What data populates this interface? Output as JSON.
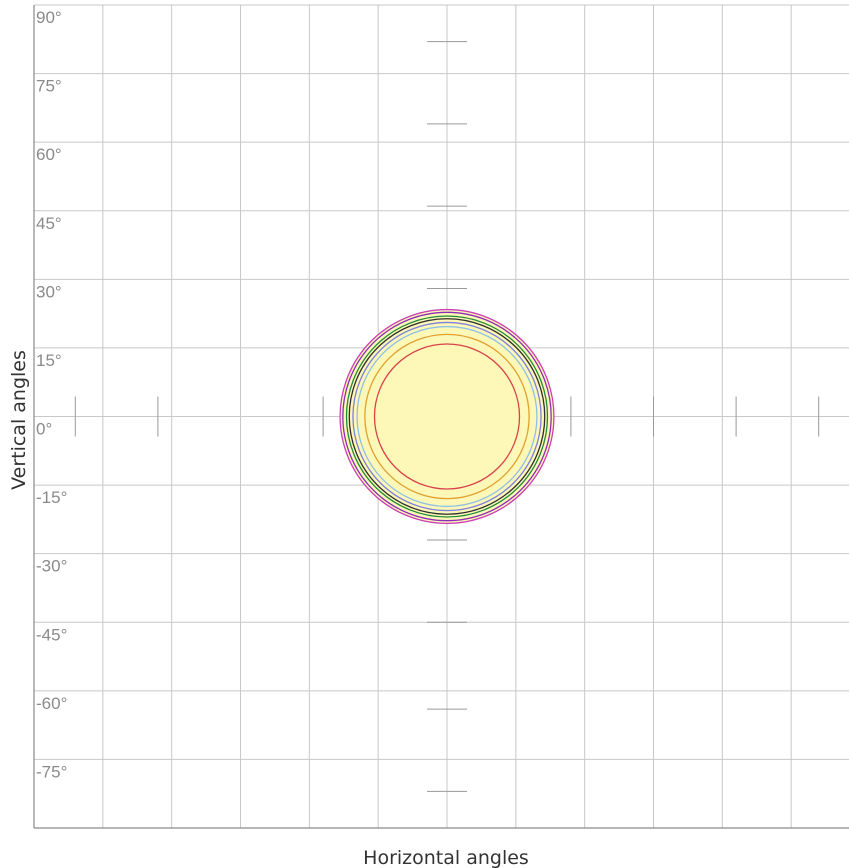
{
  "chart_data": {
    "type": "isocandela-diagram",
    "title": "",
    "xlabel": "Horizontal angles",
    "ylabel": "Vertical angles",
    "xlim": [
      -90,
      90
    ],
    "ylim": [
      -90,
      90
    ],
    "x_ticks": [
      -90,
      -75,
      -60,
      -45,
      -30,
      -15,
      0,
      15,
      30,
      45,
      60,
      75,
      90
    ],
    "y_ticks": [
      90,
      75,
      60,
      45,
      30,
      15,
      0,
      -15,
      -30,
      -45,
      -60,
      -75
    ],
    "y_tick_labels": [
      "90°",
      "75°",
      "60°",
      "45°",
      "30°",
      "15°",
      "0°",
      "-15°",
      "-30°",
      "-45°",
      "-60°",
      "-75°"
    ],
    "grid": true,
    "minor_marks_vertical": [
      82,
      64,
      46,
      28,
      9,
      -9,
      -27,
      -45,
      -64,
      -82
    ],
    "minor_marks_horizontal": [
      -81,
      -63,
      -27,
      -9,
      9,
      27,
      45,
      63,
      81
    ],
    "fill_color": "#fdf8b8",
    "fill_radius_deg": 23.3,
    "contours": [
      {
        "radius_deg": 23.3,
        "color": "#cc3fb5"
      },
      {
        "radius_deg": 22.7,
        "color": "#8e2bb8"
      },
      {
        "radius_deg": 21.9,
        "color": "#1f8a3a"
      },
      {
        "radius_deg": 21.3,
        "color": "#2e2e2e"
      },
      {
        "radius_deg": 20.5,
        "color": "#7f7fdd"
      },
      {
        "radius_deg": 19.6,
        "color": "#8fc0e8"
      },
      {
        "radius_deg": 17.9,
        "color": "#e0a030"
      },
      {
        "radius_deg": 15.8,
        "color": "#d9424a"
      }
    ]
  }
}
